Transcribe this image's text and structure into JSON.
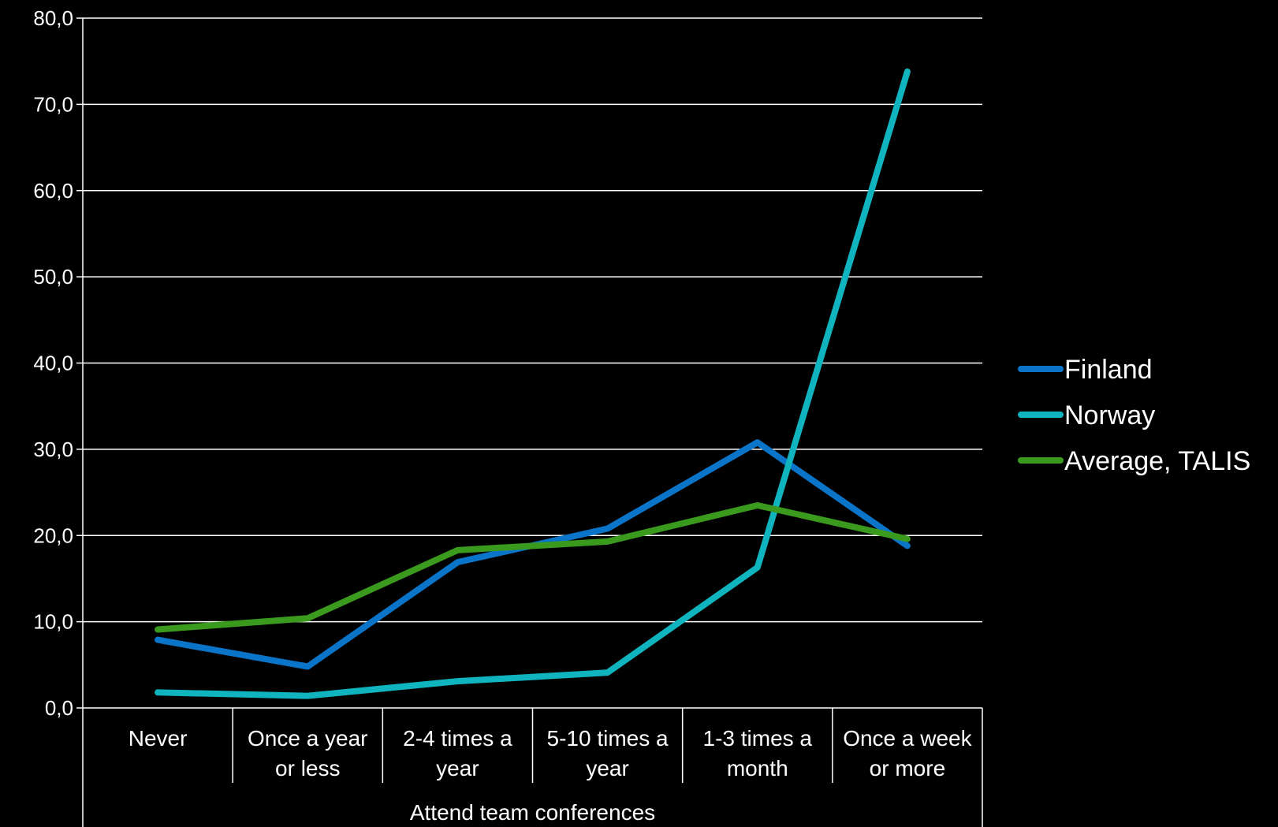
{
  "chart_data": {
    "type": "line",
    "title": "",
    "xlabel": "Attend team conferences",
    "ylabel": "",
    "ylim": [
      0,
      80
    ],
    "yticks": [
      "0,0",
      "10,0",
      "20,0",
      "30,0",
      "40,0",
      "50,0",
      "60,0",
      "70,0",
      "80,0"
    ],
    "grid": true,
    "legend_position": "right",
    "categories": [
      [
        "Never"
      ],
      [
        "Once a year",
        "or less"
      ],
      [
        "2-4 times a",
        "year"
      ],
      [
        "5-10 times a",
        "year"
      ],
      [
        "1-3 times a",
        "month"
      ],
      [
        "Once a week",
        "or more"
      ]
    ],
    "series": [
      {
        "name": "Finland",
        "color": "#0A74C9",
        "values": [
          7.9,
          4.8,
          16.9,
          20.8,
          30.8,
          18.8
        ]
      },
      {
        "name": "Norway",
        "color": "#10B4BE",
        "values": [
          1.8,
          1.4,
          3.1,
          4.1,
          16.3,
          73.8
        ]
      },
      {
        "name": "Average, TALIS",
        "color": "#3A9A1E",
        "values": [
          9.1,
          10.4,
          18.3,
          19.3,
          23.5,
          19.6
        ]
      }
    ]
  }
}
